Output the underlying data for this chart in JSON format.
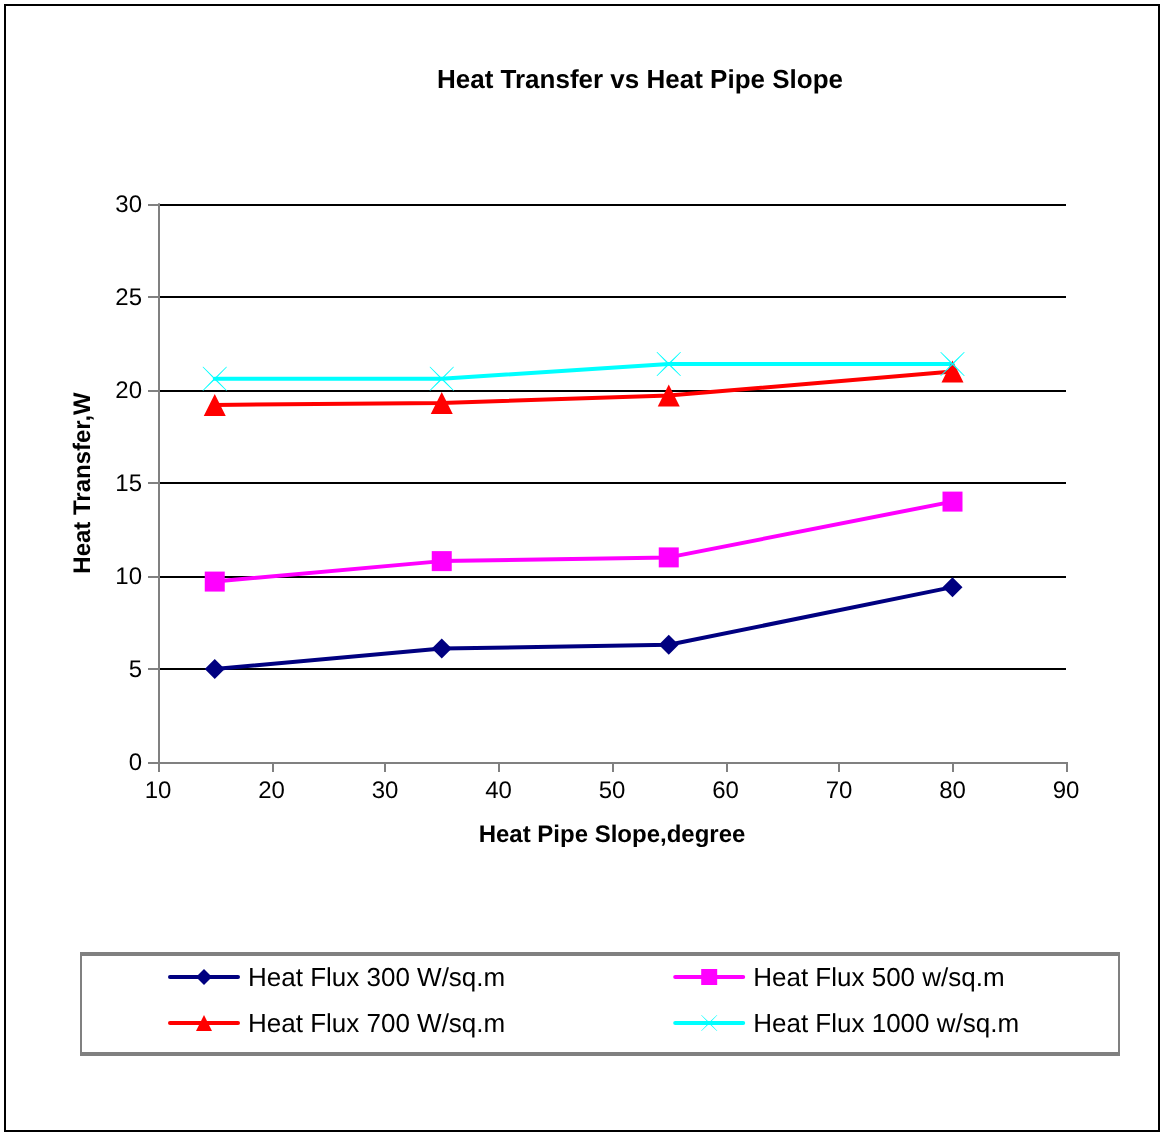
{
  "chart_data": {
    "type": "line",
    "title": "Heat Transfer vs Heat Pipe Slope",
    "xlabel": "Heat Pipe Slope,degree",
    "ylabel": "Heat Transfer,W",
    "x": [
      15,
      35,
      55,
      80
    ],
    "series": [
      {
        "name": "Heat Flux 300 W/sq.m",
        "color": "#000080",
        "marker": "diamond",
        "values": [
          5.0,
          6.1,
          6.3,
          9.4
        ]
      },
      {
        "name": "Heat Flux 500 w/sq.m",
        "color": "#ff00ff",
        "marker": "square",
        "values": [
          9.7,
          10.8,
          11.0,
          14.0
        ]
      },
      {
        "name": "Heat Flux 700 W/sq.m",
        "color": "#ff0000",
        "marker": "triangle",
        "values": [
          19.2,
          19.3,
          19.7,
          21.0
        ]
      },
      {
        "name": "Heat Flux 1000 w/sq.m",
        "color": "#00ffff",
        "marker": "cross",
        "values": [
          20.6,
          20.6,
          21.4,
          21.4
        ]
      }
    ],
    "xlim": [
      10,
      90
    ],
    "xticks": [
      10,
      20,
      30,
      40,
      50,
      60,
      70,
      80,
      90
    ],
    "ylim": [
      0,
      30
    ],
    "yticks": [
      0,
      5,
      10,
      15,
      20,
      25,
      30
    ],
    "grid": "y",
    "legend": "bottom",
    "line_style": "solid"
  }
}
